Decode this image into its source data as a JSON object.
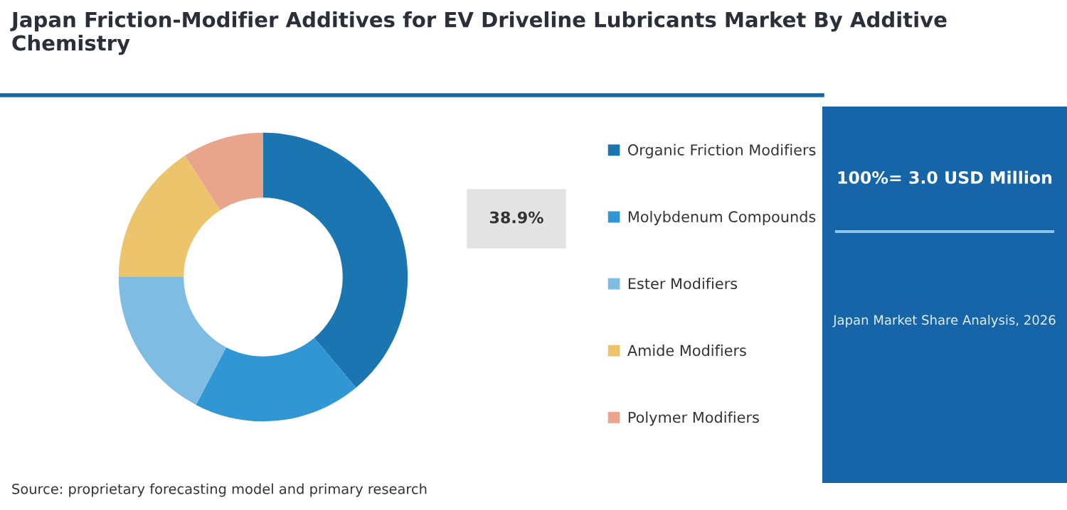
{
  "chart_data": {
    "type": "donut",
    "title": "Japan Friction-Modifier Additives for EV Driveline Lubricants Market By Additive Chemistry",
    "categories": [
      "Organic Friction Modifiers",
      "Molybdenum Compounds",
      "Ester Modifiers",
      "Amide Modifiers",
      "Polymer Modifiers"
    ],
    "values": [
      38.9,
      18.8,
      17.3,
      15.9,
      9.1
    ],
    "colors": [
      "#1b75b0",
      "#3196d4",
      "#7fbce3",
      "#ebc46b",
      "#e9a58c"
    ],
    "value_labels": [
      "38.9%",
      null,
      null,
      null,
      null
    ],
    "legend": "right",
    "annotations": [
      "Source: proprietary forecasting model and primary research",
      "100%= 3.0 USD Million",
      "Japan Market Share Analysis, 2026"
    ]
  }
}
